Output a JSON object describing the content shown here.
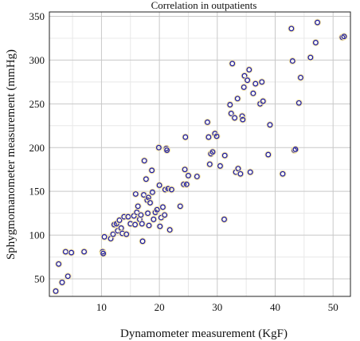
{
  "chart_data": {
    "type": "scatter",
    "title": "Correlation in outpatients",
    "xlabel": "Dynamometer measurement (KgF)",
    "ylabel": "Sphygmomanometer measurement (mmHg)",
    "xlim": [
      1,
      53
    ],
    "ylim": [
      30,
      355
    ],
    "x_ticks": [
      10,
      20,
      30,
      40,
      50
    ],
    "y_ticks": [
      50,
      100,
      150,
      200,
      250,
      300,
      350
    ],
    "grid": true,
    "marker_color": "#1a1aa8",
    "halo_color": "#f2e2a6",
    "points": [
      {
        "x": 2.1,
        "y": 36
      },
      {
        "x": 2.6,
        "y": 67
      },
      {
        "x": 3.2,
        "y": 46
      },
      {
        "x": 3.8,
        "y": 81
      },
      {
        "x": 4.2,
        "y": 53
      },
      {
        "x": 4.8,
        "y": 80
      },
      {
        "x": 7.0,
        "y": 81
      },
      {
        "x": 10.2,
        "y": 81
      },
      {
        "x": 10.3,
        "y": 79
      },
      {
        "x": 10.5,
        "y": 98
      },
      {
        "x": 11.6,
        "y": 96
      },
      {
        "x": 12.0,
        "y": 101
      },
      {
        "x": 12.2,
        "y": 112
      },
      {
        "x": 12.6,
        "y": 113
      },
      {
        "x": 12.8,
        "y": 105
      },
      {
        "x": 13.1,
        "y": 117
      },
      {
        "x": 13.4,
        "y": 108
      },
      {
        "x": 13.6,
        "y": 102
      },
      {
        "x": 13.9,
        "y": 121
      },
      {
        "x": 14.3,
        "y": 101
      },
      {
        "x": 14.6,
        "y": 121
      },
      {
        "x": 15.0,
        "y": 113
      },
      {
        "x": 15.6,
        "y": 122
      },
      {
        "x": 15.8,
        "y": 112
      },
      {
        "x": 15.9,
        "y": 147
      },
      {
        "x": 16.1,
        "y": 126
      },
      {
        "x": 16.3,
        "y": 133
      },
      {
        "x": 16.6,
        "y": 118
      },
      {
        "x": 16.8,
        "y": 123
      },
      {
        "x": 17.0,
        "y": 113
      },
      {
        "x": 17.1,
        "y": 93
      },
      {
        "x": 17.3,
        "y": 146
      },
      {
        "x": 17.4,
        "y": 185
      },
      {
        "x": 17.7,
        "y": 164
      },
      {
        "x": 17.9,
        "y": 140
      },
      {
        "x": 18.0,
        "y": 125
      },
      {
        "x": 18.1,
        "y": 143
      },
      {
        "x": 18.2,
        "y": 111
      },
      {
        "x": 18.4,
        "y": 137
      },
      {
        "x": 18.7,
        "y": 174
      },
      {
        "x": 18.8,
        "y": 149
      },
      {
        "x": 19.0,
        "y": 118
      },
      {
        "x": 19.3,
        "y": 126
      },
      {
        "x": 19.6,
        "y": 129
      },
      {
        "x": 19.9,
        "y": 200
      },
      {
        "x": 20.0,
        "y": 157
      },
      {
        "x": 20.1,
        "y": 110
      },
      {
        "x": 20.3,
        "y": 120
      },
      {
        "x": 20.6,
        "y": 132
      },
      {
        "x": 20.9,
        "y": 123
      },
      {
        "x": 21.0,
        "y": 152
      },
      {
        "x": 21.2,
        "y": 199
      },
      {
        "x": 21.3,
        "y": 197
      },
      {
        "x": 21.5,
        "y": 153
      },
      {
        "x": 21.8,
        "y": 106
      },
      {
        "x": 22.1,
        "y": 152
      },
      {
        "x": 23.6,
        "y": 133
      },
      {
        "x": 24.2,
        "y": 158
      },
      {
        "x": 24.4,
        "y": 175
      },
      {
        "x": 24.5,
        "y": 212
      },
      {
        "x": 24.7,
        "y": 158
      },
      {
        "x": 25.0,
        "y": 168
      },
      {
        "x": 26.5,
        "y": 167
      },
      {
        "x": 28.3,
        "y": 229
      },
      {
        "x": 28.5,
        "y": 212
      },
      {
        "x": 28.7,
        "y": 181
      },
      {
        "x": 28.9,
        "y": 193
      },
      {
        "x": 29.2,
        "y": 195
      },
      {
        "x": 29.6,
        "y": 216
      },
      {
        "x": 29.9,
        "y": 213
      },
      {
        "x": 30.5,
        "y": 179
      },
      {
        "x": 31.2,
        "y": 118
      },
      {
        "x": 31.3,
        "y": 191
      },
      {
        "x": 32.2,
        "y": 249
      },
      {
        "x": 32.4,
        "y": 239
      },
      {
        "x": 32.6,
        "y": 296
      },
      {
        "x": 33.0,
        "y": 234
      },
      {
        "x": 33.2,
        "y": 172
      },
      {
        "x": 33.5,
        "y": 256
      },
      {
        "x": 33.6,
        "y": 176
      },
      {
        "x": 34.0,
        "y": 170
      },
      {
        "x": 34.3,
        "y": 236
      },
      {
        "x": 34.4,
        "y": 232
      },
      {
        "x": 34.6,
        "y": 269
      },
      {
        "x": 34.7,
        "y": 282
      },
      {
        "x": 35.2,
        "y": 277
      },
      {
        "x": 35.5,
        "y": 289
      },
      {
        "x": 35.7,
        "y": 172
      },
      {
        "x": 36.2,
        "y": 262
      },
      {
        "x": 36.6,
        "y": 273
      },
      {
        "x": 37.4,
        "y": 250
      },
      {
        "x": 37.7,
        "y": 275
      },
      {
        "x": 37.9,
        "y": 253
      },
      {
        "x": 38.8,
        "y": 192
      },
      {
        "x": 39.1,
        "y": 226
      },
      {
        "x": 41.3,
        "y": 170
      },
      {
        "x": 42.8,
        "y": 336
      },
      {
        "x": 43.0,
        "y": 299
      },
      {
        "x": 43.3,
        "y": 197
      },
      {
        "x": 43.5,
        "y": 198
      },
      {
        "x": 44.1,
        "y": 251
      },
      {
        "x": 44.4,
        "y": 280
      },
      {
        "x": 46.1,
        "y": 303
      },
      {
        "x": 47.0,
        "y": 320
      },
      {
        "x": 47.3,
        "y": 343
      },
      {
        "x": 51.6,
        "y": 326
      },
      {
        "x": 51.9,
        "y": 327
      }
    ]
  }
}
